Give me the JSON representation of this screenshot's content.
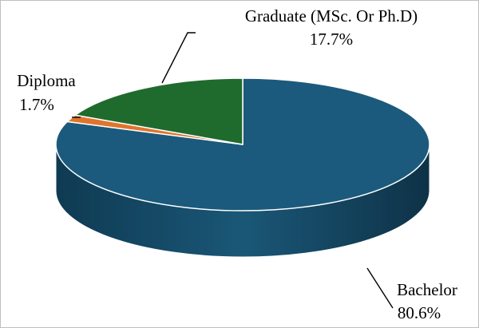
{
  "chart_data": {
    "type": "pie",
    "title": "",
    "slices": [
      {
        "label": "Bachelor",
        "value": 80.6,
        "value_label": "80.6%",
        "color": "#1b5a7c",
        "side_color": "#123f58"
      },
      {
        "label": "Diploma",
        "value": 1.7,
        "value_label": "1.7%",
        "color": "#e0742c",
        "side_color": "#a6521b"
      },
      {
        "label": "Graduate (MSc. Or Ph.D)",
        "value": 17.7,
        "value_label": "17.7%",
        "color": "#1f6b2e",
        "side_color": "#154b20"
      }
    ],
    "legend": "none",
    "style": "3d"
  }
}
